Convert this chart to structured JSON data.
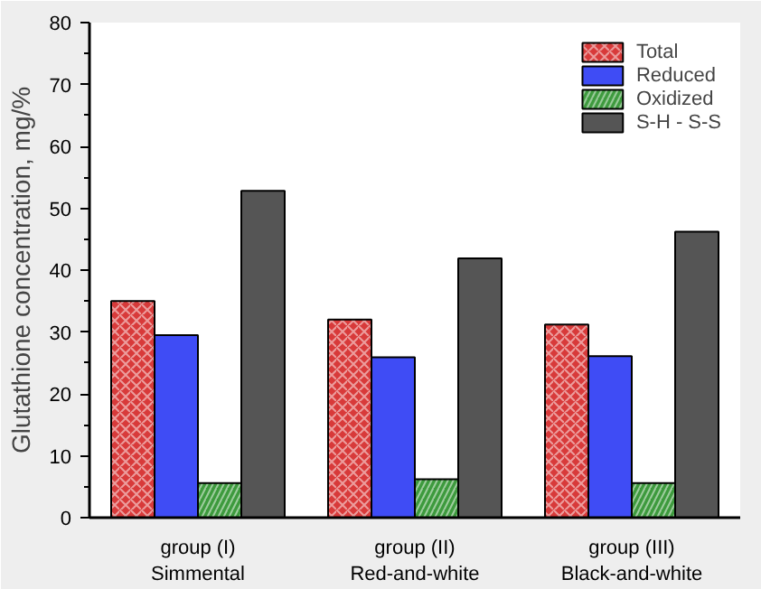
{
  "chart_data": {
    "type": "bar",
    "ylabel": "Glutathione concentration, mg/%",
    "categories": [
      "group (I)\nSimmental",
      "group (II)\nRed-and-white",
      "group (III)\nBlack-and-white"
    ],
    "series": [
      {
        "name": "Total",
        "color": "#d83a3a",
        "values": [
          35.0,
          32.0,
          31.2
        ]
      },
      {
        "name": "Reduced",
        "color": "#3f4cf5",
        "values": [
          29.5,
          25.9,
          26.1
        ]
      },
      {
        "name": "Oxidized",
        "color": "#3d9a3d",
        "values": [
          5.6,
          6.2,
          5.6
        ]
      },
      {
        "name": "S-H - S-S",
        "color": "#555555",
        "values": [
          52.8,
          41.9,
          46.2
        ]
      }
    ],
    "ylim": [
      0,
      80
    ],
    "yticks": [
      0,
      10,
      20,
      30,
      40,
      50,
      60,
      70,
      80
    ],
    "grid": false,
    "legend": "top right"
  }
}
